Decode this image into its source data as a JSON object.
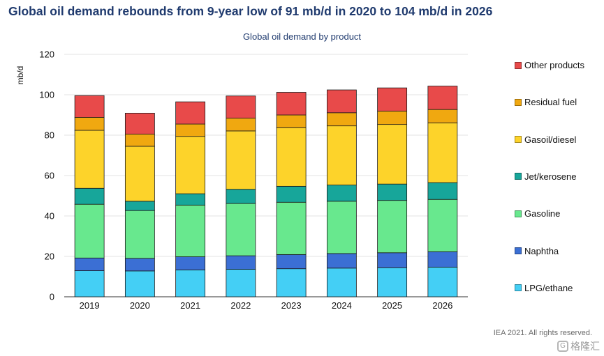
{
  "title": "Global oil demand rebounds from 9-year low of 91 mb/d in 2020 to 104 mb/d in 2026",
  "footer": "IEA 2021. All rights reserved.",
  "watermark": {
    "text": "格隆汇",
    "icon": "gelonghui-logo"
  },
  "chart_data": {
    "type": "bar",
    "stacked": true,
    "title": "Global oil demand by product",
    "xlabel": "",
    "ylabel": "mb/d",
    "ylim": [
      0,
      120
    ],
    "yticks": [
      0,
      20,
      40,
      60,
      80,
      100,
      120
    ],
    "grid": true,
    "legend_position": "right",
    "categories": [
      "2019",
      "2020",
      "2021",
      "2022",
      "2023",
      "2024",
      "2025",
      "2026"
    ],
    "series": [
      {
        "name": "LPG/ethane",
        "color": "#44cff5",
        "values": [
          12.9,
          12.8,
          13.3,
          13.6,
          13.9,
          14.2,
          14.4,
          14.7
        ]
      },
      {
        "name": "Naphtha",
        "color": "#3b6fd4",
        "values": [
          6.3,
          6.2,
          6.5,
          6.7,
          7.0,
          7.2,
          7.4,
          7.6
        ]
      },
      {
        "name": "Gasoline",
        "color": "#68e88e",
        "values": [
          26.6,
          23.7,
          25.6,
          25.9,
          25.9,
          25.9,
          25.9,
          25.9
        ]
      },
      {
        "name": "Jet/kerosene",
        "color": "#17a69a",
        "values": [
          7.9,
          4.6,
          5.6,
          7.0,
          7.9,
          8.0,
          8.1,
          8.3
        ]
      },
      {
        "name": "Gasoil/diesel",
        "color": "#fdd32a",
        "values": [
          28.7,
          27.2,
          28.4,
          28.9,
          29.0,
          29.3,
          29.5,
          29.6
        ]
      },
      {
        "name": "Residual fuel",
        "color": "#f0a810",
        "values": [
          6.4,
          6.0,
          6.1,
          6.3,
          6.3,
          6.5,
          6.6,
          6.6
        ]
      },
      {
        "name": "Other products",
        "color": "#e84a4a",
        "values": [
          10.8,
          10.4,
          11.0,
          11.0,
          11.2,
          11.3,
          11.5,
          11.6
        ]
      }
    ]
  }
}
